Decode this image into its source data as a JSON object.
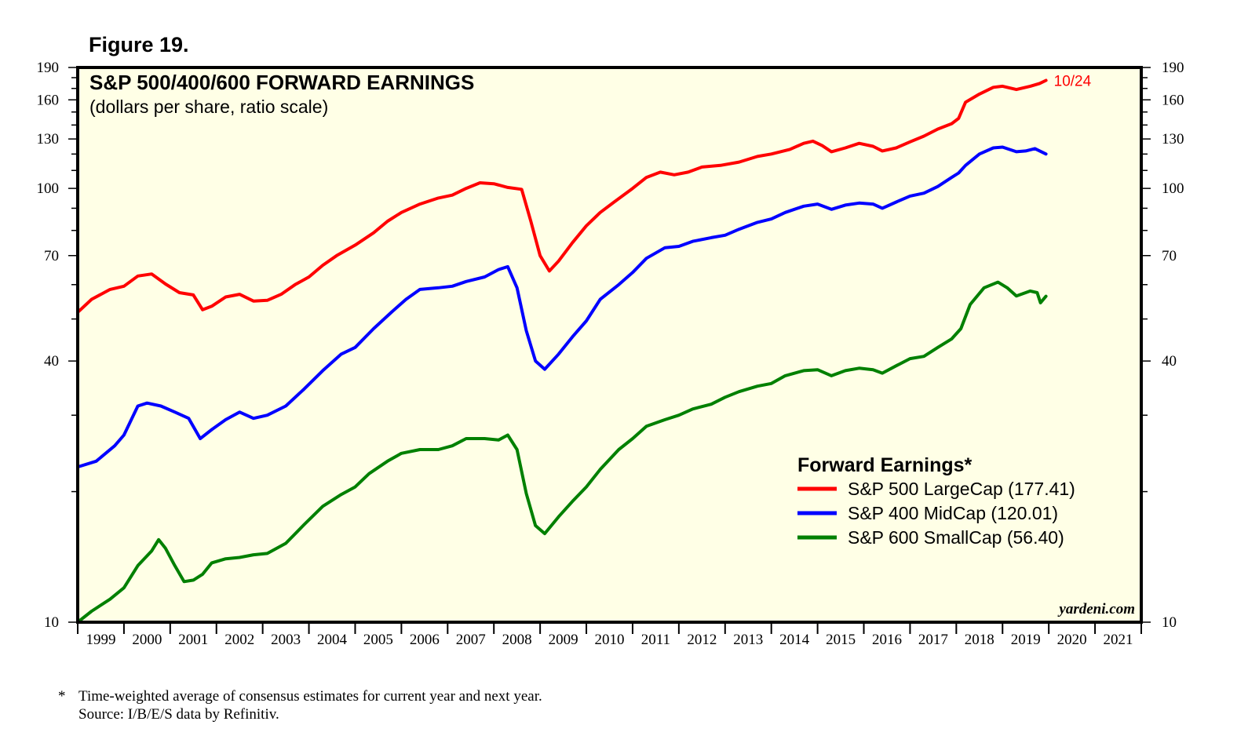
{
  "figure_label": "Figure 19.",
  "footnote": {
    "marker": "*",
    "line1": "Time-weighted average of consensus estimates for current year and next year.",
    "line2": "Source: I/B/E/S data by Refinitiv."
  },
  "chart_data": {
    "type": "line",
    "title": "S&P 500/400/600 FORWARD EARNINGS",
    "subtitle": "(dollars per share, ratio scale)",
    "y_scale": "log",
    "ylim": [
      10,
      190
    ],
    "y_ticks": [
      10,
      40,
      70,
      100,
      130,
      160,
      190
    ],
    "x_range": [
      1999,
      2022
    ],
    "x_tick_labels": [
      "1999",
      "2000",
      "2001",
      "2002",
      "2003",
      "2004",
      "2005",
      "2006",
      "2007",
      "2008",
      "2009",
      "2010",
      "2011",
      "2012",
      "2013",
      "2014",
      "2015",
      "2016",
      "2017",
      "2018",
      "2019",
      "2020",
      "2021"
    ],
    "background_color": "#ffffe6",
    "last_date_label": "10/24",
    "credit": "yardeni.com",
    "legend": {
      "title": "Forward Earnings*",
      "position": "bottom-right"
    },
    "series": [
      {
        "name": "S&P 500 LargeCap (177.41)",
        "color": "#ff0000",
        "points": [
          [
            1999.0,
            51.8
          ],
          [
            1999.3,
            55.5
          ],
          [
            1999.7,
            58.5
          ],
          [
            2000.0,
            59.5
          ],
          [
            2000.3,
            62.8
          ],
          [
            2000.6,
            63.5
          ],
          [
            2000.9,
            60.2
          ],
          [
            2001.2,
            57.5
          ],
          [
            2001.5,
            56.8
          ],
          [
            2001.7,
            52.5
          ],
          [
            2001.9,
            53.5
          ],
          [
            2002.2,
            56.2
          ],
          [
            2002.5,
            57.0
          ],
          [
            2002.8,
            55.0
          ],
          [
            2003.1,
            55.2
          ],
          [
            2003.4,
            57.0
          ],
          [
            2003.7,
            60.0
          ],
          [
            2004.0,
            62.5
          ],
          [
            2004.3,
            66.5
          ],
          [
            2004.6,
            70.0
          ],
          [
            2005.0,
            74.0
          ],
          [
            2005.4,
            79.0
          ],
          [
            2005.7,
            84.0
          ],
          [
            2006.0,
            88.0
          ],
          [
            2006.4,
            92.0
          ],
          [
            2006.8,
            95.0
          ],
          [
            2007.1,
            96.5
          ],
          [
            2007.4,
            100.0
          ],
          [
            2007.7,
            103.0
          ],
          [
            2008.0,
            102.5
          ],
          [
            2008.3,
            100.5
          ],
          [
            2008.6,
            99.5
          ],
          [
            2008.8,
            84.0
          ],
          [
            2009.0,
            70.0
          ],
          [
            2009.2,
            64.5
          ],
          [
            2009.4,
            68.0
          ],
          [
            2009.7,
            75.0
          ],
          [
            2010.0,
            82.0
          ],
          [
            2010.3,
            88.0
          ],
          [
            2010.6,
            93.0
          ],
          [
            2011.0,
            100.0
          ],
          [
            2011.3,
            106.0
          ],
          [
            2011.6,
            109.0
          ],
          [
            2011.9,
            107.5
          ],
          [
            2012.2,
            109.0
          ],
          [
            2012.5,
            112.0
          ],
          [
            2012.9,
            113.0
          ],
          [
            2013.3,
            115.0
          ],
          [
            2013.7,
            118.5
          ],
          [
            2014.0,
            120.0
          ],
          [
            2014.4,
            123.0
          ],
          [
            2014.7,
            127.0
          ],
          [
            2014.9,
            128.5
          ],
          [
            2015.1,
            125.5
          ],
          [
            2015.3,
            121.5
          ],
          [
            2015.6,
            124.0
          ],
          [
            2015.9,
            127.0
          ],
          [
            2016.2,
            125.0
          ],
          [
            2016.4,
            122.0
          ],
          [
            2016.7,
            124.0
          ],
          [
            2017.0,
            128.0
          ],
          [
            2017.3,
            132.0
          ],
          [
            2017.6,
            137.0
          ],
          [
            2017.9,
            141.0
          ],
          [
            2018.05,
            145.0
          ],
          [
            2018.2,
            158.0
          ],
          [
            2018.5,
            165.0
          ],
          [
            2018.8,
            171.0
          ],
          [
            2019.0,
            172.0
          ],
          [
            2019.3,
            169.0
          ],
          [
            2019.6,
            172.0
          ],
          [
            2019.8,
            174.5
          ],
          [
            2019.94,
            177.41
          ]
        ]
      },
      {
        "name": "S&P 400 MidCap (120.01)",
        "color": "#0000ff",
        "points": [
          [
            1999.0,
            22.8
          ],
          [
            1999.4,
            23.5
          ],
          [
            1999.8,
            25.5
          ],
          [
            2000.0,
            27.0
          ],
          [
            2000.3,
            31.5
          ],
          [
            2000.5,
            32.0
          ],
          [
            2000.8,
            31.5
          ],
          [
            2001.1,
            30.5
          ],
          [
            2001.4,
            29.5
          ],
          [
            2001.65,
            26.5
          ],
          [
            2001.9,
            27.8
          ],
          [
            2002.2,
            29.3
          ],
          [
            2002.5,
            30.5
          ],
          [
            2002.8,
            29.5
          ],
          [
            2003.1,
            30.0
          ],
          [
            2003.5,
            31.5
          ],
          [
            2003.9,
            34.5
          ],
          [
            2004.3,
            38.0
          ],
          [
            2004.7,
            41.5
          ],
          [
            2005.0,
            43.0
          ],
          [
            2005.4,
            47.5
          ],
          [
            2005.8,
            52.0
          ],
          [
            2006.1,
            55.5
          ],
          [
            2006.4,
            58.5
          ],
          [
            2006.8,
            59.0
          ],
          [
            2007.1,
            59.5
          ],
          [
            2007.4,
            61.0
          ],
          [
            2007.8,
            62.5
          ],
          [
            2008.1,
            65.0
          ],
          [
            2008.3,
            66.0
          ],
          [
            2008.5,
            59.0
          ],
          [
            2008.7,
            47.0
          ],
          [
            2008.9,
            40.0
          ],
          [
            2009.1,
            38.3
          ],
          [
            2009.4,
            41.5
          ],
          [
            2009.7,
            45.5
          ],
          [
            2010.0,
            49.5
          ],
          [
            2010.3,
            55.5
          ],
          [
            2010.7,
            60.0
          ],
          [
            2011.0,
            64.0
          ],
          [
            2011.3,
            69.0
          ],
          [
            2011.7,
            73.0
          ],
          [
            2012.0,
            73.5
          ],
          [
            2012.3,
            75.5
          ],
          [
            2012.7,
            77.0
          ],
          [
            2013.0,
            78.0
          ],
          [
            2013.3,
            80.5
          ],
          [
            2013.7,
            83.5
          ],
          [
            2014.0,
            85.0
          ],
          [
            2014.3,
            88.0
          ],
          [
            2014.7,
            91.0
          ],
          [
            2015.0,
            92.0
          ],
          [
            2015.3,
            89.5
          ],
          [
            2015.6,
            91.5
          ],
          [
            2015.9,
            92.5
          ],
          [
            2016.2,
            92.0
          ],
          [
            2016.4,
            90.0
          ],
          [
            2016.7,
            93.0
          ],
          [
            2017.0,
            96.0
          ],
          [
            2017.3,
            97.5
          ],
          [
            2017.6,
            101.0
          ],
          [
            2017.9,
            106.0
          ],
          [
            2018.05,
            108.5
          ],
          [
            2018.2,
            113.0
          ],
          [
            2018.5,
            120.0
          ],
          [
            2018.8,
            124.0
          ],
          [
            2019.0,
            124.5
          ],
          [
            2019.3,
            121.5
          ],
          [
            2019.5,
            122.0
          ],
          [
            2019.7,
            123.5
          ],
          [
            2019.94,
            120.01
          ]
        ]
      },
      {
        "name": "S&P 600 SmallCap (56.40)",
        "color": "#008000",
        "points": [
          [
            1999.0,
            10.0
          ],
          [
            1999.3,
            10.6
          ],
          [
            1999.7,
            11.3
          ],
          [
            2000.0,
            12.0
          ],
          [
            2000.3,
            13.5
          ],
          [
            2000.6,
            14.6
          ],
          [
            2000.75,
            15.5
          ],
          [
            2000.9,
            14.8
          ],
          [
            2001.1,
            13.5
          ],
          [
            2001.3,
            12.4
          ],
          [
            2001.5,
            12.5
          ],
          [
            2001.7,
            12.9
          ],
          [
            2001.9,
            13.7
          ],
          [
            2002.2,
            14.0
          ],
          [
            2002.5,
            14.1
          ],
          [
            2002.8,
            14.3
          ],
          [
            2003.1,
            14.4
          ],
          [
            2003.5,
            15.2
          ],
          [
            2003.9,
            16.8
          ],
          [
            2004.3,
            18.5
          ],
          [
            2004.7,
            19.7
          ],
          [
            2005.0,
            20.5
          ],
          [
            2005.3,
            22.0
          ],
          [
            2005.7,
            23.5
          ],
          [
            2006.0,
            24.5
          ],
          [
            2006.4,
            25.0
          ],
          [
            2006.8,
            25.0
          ],
          [
            2007.1,
            25.5
          ],
          [
            2007.4,
            26.5
          ],
          [
            2007.8,
            26.5
          ],
          [
            2008.1,
            26.3
          ],
          [
            2008.3,
            27.0
          ],
          [
            2008.5,
            25.0
          ],
          [
            2008.7,
            19.8
          ],
          [
            2008.9,
            16.7
          ],
          [
            2009.1,
            16.0
          ],
          [
            2009.4,
            17.5
          ],
          [
            2009.7,
            19.0
          ],
          [
            2010.0,
            20.5
          ],
          [
            2010.3,
            22.5
          ],
          [
            2010.7,
            25.0
          ],
          [
            2011.0,
            26.5
          ],
          [
            2011.3,
            28.3
          ],
          [
            2011.7,
            29.3
          ],
          [
            2012.0,
            30.0
          ],
          [
            2012.3,
            31.0
          ],
          [
            2012.7,
            31.8
          ],
          [
            2013.0,
            33.0
          ],
          [
            2013.3,
            34.0
          ],
          [
            2013.7,
            35.0
          ],
          [
            2014.0,
            35.5
          ],
          [
            2014.3,
            37.0
          ],
          [
            2014.7,
            38.0
          ],
          [
            2015.0,
            38.2
          ],
          [
            2015.3,
            37.0
          ],
          [
            2015.6,
            38.0
          ],
          [
            2015.9,
            38.5
          ],
          [
            2016.2,
            38.2
          ],
          [
            2016.4,
            37.5
          ],
          [
            2016.7,
            39.0
          ],
          [
            2017.0,
            40.5
          ],
          [
            2017.3,
            41.0
          ],
          [
            2017.6,
            43.0
          ],
          [
            2017.9,
            45.0
          ],
          [
            2018.1,
            47.5
          ],
          [
            2018.3,
            54.0
          ],
          [
            2018.6,
            59.0
          ],
          [
            2018.9,
            60.8
          ],
          [
            2019.1,
            59.0
          ],
          [
            2019.3,
            56.5
          ],
          [
            2019.6,
            58.0
          ],
          [
            2019.75,
            57.5
          ],
          [
            2019.82,
            54.5
          ],
          [
            2019.94,
            56.4
          ]
        ]
      }
    ]
  }
}
